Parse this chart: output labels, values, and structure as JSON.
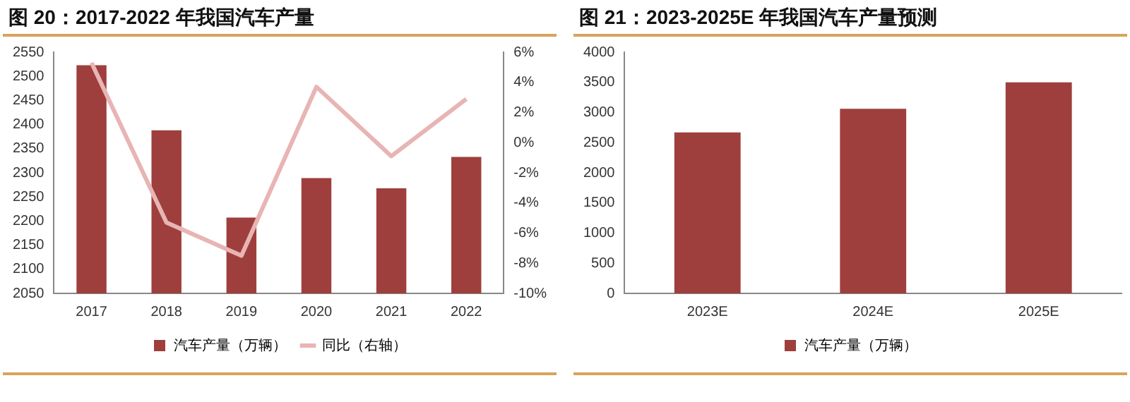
{
  "chart_data": [
    {
      "type": "bar",
      "title": "图 20：2017-2022 年我国汽车产量",
      "categories": [
        "2017",
        "2018",
        "2019",
        "2020",
        "2021",
        "2022"
      ],
      "series": [
        {
          "name": "汽车产量（万辆）",
          "color": "#9e3f3d",
          "values": [
            2523,
            2388,
            2207,
            2289,
            2268,
            2333
          ]
        },
        {
          "name": "同比（右轴）",
          "type": "line",
          "axis": "y2",
          "color": "#e8b4b4",
          "values": [
            5.3,
            -5.3,
            -7.5,
            3.7,
            -0.9,
            2.9
          ]
        }
      ],
      "ylim": [
        2050,
        2550
      ],
      "yticks": [
        2050,
        2100,
        2150,
        2200,
        2250,
        2300,
        2350,
        2400,
        2450,
        2500,
        2550
      ],
      "y2lim": [
        -10,
        6
      ],
      "y2ticks": [
        {
          "value": -10,
          "label": "-10%"
        },
        {
          "value": -8,
          "label": "-8%"
        },
        {
          "value": -6,
          "label": "-6%"
        },
        {
          "value": -4,
          "label": "-4%"
        },
        {
          "value": -2,
          "label": "-2%"
        },
        {
          "value": 0,
          "label": "0%"
        },
        {
          "value": 2,
          "label": "2%"
        },
        {
          "value": 4,
          "label": "4%"
        },
        {
          "value": 6,
          "label": "6%"
        }
      ],
      "grid": false,
      "legend": "bottom",
      "marker": "none"
    },
    {
      "type": "bar",
      "title": "图 21：2023-2025E 年我国汽车产量预测",
      "categories": [
        "2023E",
        "2024E",
        "2025E"
      ],
      "series": [
        {
          "name": "汽车产量（万辆）",
          "color": "#9e3f3d",
          "values": [
            2670,
            3060,
            3500
          ]
        }
      ],
      "ylim": [
        0,
        4000
      ],
      "yticks": [
        0,
        500,
        1000,
        1500,
        2000,
        2500,
        3000,
        3500,
        4000
      ],
      "grid": false,
      "legend": "bottom"
    }
  ]
}
